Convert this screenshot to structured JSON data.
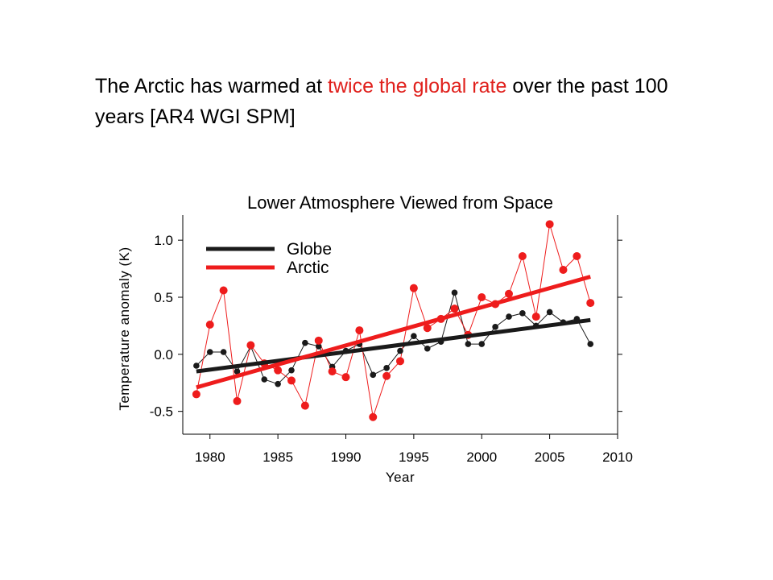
{
  "headline": {
    "part1": "The Arctic has warmed at ",
    "highlight": "twice the global rate",
    "part2": " over the past 100 years [AR4 WGI SPM]"
  },
  "colors": {
    "globe": "#1a1a1a",
    "arctic": "#ee1c1c",
    "highlight_text": "#e0201c"
  },
  "chart_data": {
    "type": "line",
    "title": "Lower Atmosphere Viewed from Space",
    "xlabel": "Year",
    "ylabel": "Temperature anomaly (K)",
    "xlim": [
      1978,
      2010
    ],
    "ylim": [
      -0.7,
      1.22
    ],
    "x_ticks": [
      1980,
      1985,
      1990,
      1995,
      2000,
      2005,
      2010
    ],
    "x_tick_labels": [
      "1980",
      "1985",
      "1990",
      "1995",
      "2000",
      "2005",
      "2010"
    ],
    "y_ticks": [
      -0.5,
      0.0,
      0.5,
      1.0
    ],
    "y_tick_labels": [
      "-0.5",
      "0.0",
      "0.5",
      "1.0"
    ],
    "grid": false,
    "legend_position": "top-left",
    "x": [
      1979,
      1980,
      1981,
      1982,
      1983,
      1984,
      1985,
      1986,
      1987,
      1988,
      1989,
      1990,
      1991,
      1992,
      1993,
      1994,
      1995,
      1996,
      1997,
      1998,
      1999,
      2000,
      2001,
      2002,
      2003,
      2004,
      2005,
      2006,
      2007,
      2008
    ],
    "series": [
      {
        "name": "Globe",
        "values": [
          -0.1,
          0.02,
          0.02,
          -0.15,
          0.07,
          -0.22,
          -0.26,
          -0.14,
          0.1,
          0.07,
          -0.11,
          0.03,
          0.09,
          -0.18,
          -0.12,
          0.03,
          0.16,
          0.05,
          0.11,
          0.54,
          0.09,
          0.09,
          0.24,
          0.33,
          0.36,
          0.25,
          0.37,
          0.28,
          0.31,
          0.09
        ],
        "trend": [
          -0.15,
          0.3
        ]
      },
      {
        "name": "Arctic",
        "values": [
          -0.35,
          0.26,
          0.56,
          -0.41,
          0.08,
          -0.08,
          -0.14,
          -0.23,
          -0.45,
          0.12,
          -0.15,
          -0.2,
          0.21,
          -0.55,
          -0.19,
          -0.06,
          0.58,
          0.23,
          0.31,
          0.4,
          0.17,
          0.5,
          0.44,
          0.53,
          0.86,
          0.33,
          1.14,
          0.74,
          0.86,
          0.45
        ],
        "trend": [
          -0.29,
          0.68
        ]
      }
    ]
  }
}
